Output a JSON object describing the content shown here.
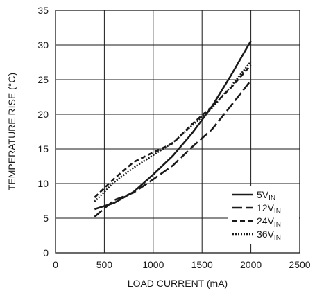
{
  "chart_data": {
    "type": "line",
    "xlabel": "LOAD CURRENT (mA)",
    "ylabel": "TEMPERATURE RISE (°C)",
    "xlim": [
      0,
      2500
    ],
    "ylim": [
      0,
      35
    ],
    "xticks": [
      0,
      500,
      1000,
      1500,
      2000,
      2500
    ],
    "yticks": [
      0,
      5,
      10,
      15,
      20,
      25,
      30,
      35
    ],
    "grid": true,
    "legend_position": "bottom-right",
    "series": [
      {
        "name": "5V",
        "name_sub": "IN",
        "dash": "solid",
        "x": [
          400,
          600,
          800,
          1000,
          1200,
          1400,
          1600,
          1800,
          2000
        ],
        "y": [
          6.3,
          7.2,
          8.8,
          11.3,
          14.0,
          17.3,
          21.1,
          25.7,
          30.6
        ]
      },
      {
        "name": "12V",
        "name_sub": "IN",
        "dash": "long-dash",
        "x": [
          400,
          600,
          800,
          1000,
          1200,
          1400,
          1600,
          1800,
          2000
        ],
        "y": [
          5.2,
          7.6,
          8.7,
          10.6,
          12.6,
          15.3,
          17.8,
          21.3,
          24.9
        ]
      },
      {
        "name": "24V",
        "name_sub": "IN",
        "dash": "short-dash",
        "x": [
          400,
          600,
          800,
          1000,
          1200,
          1400,
          1600,
          1800,
          2000
        ],
        "y": [
          8.0,
          10.7,
          13.1,
          14.5,
          15.8,
          18.6,
          21.1,
          23.9,
          27.1
        ]
      },
      {
        "name": "36V",
        "name_sub": "IN",
        "dash": "dotted",
        "x": [
          400,
          600,
          800,
          1000,
          1200,
          1400,
          1600,
          1800,
          2000
        ],
        "y": [
          7.4,
          10.2,
          12.3,
          14.1,
          15.9,
          18.4,
          20.9,
          24.1,
          27.6
        ]
      }
    ]
  }
}
